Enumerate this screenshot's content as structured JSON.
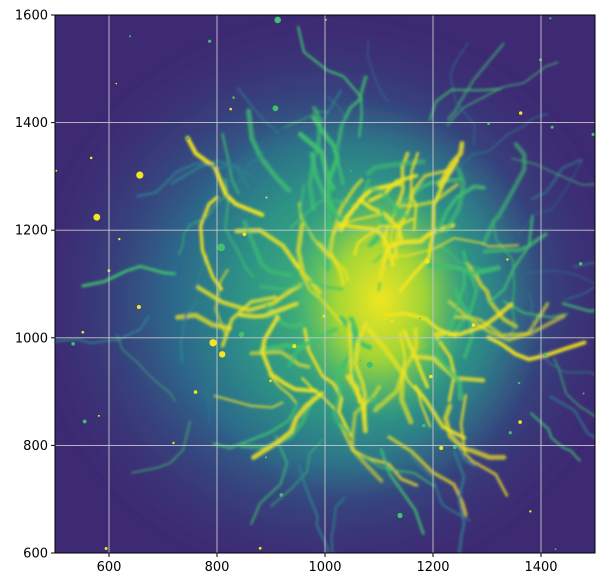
{
  "image": {
    "subject": "nebula",
    "colormap": "viridis",
    "grid": true,
    "colors": {
      "background": "#3d2a73",
      "mid": "#2f7f8e",
      "bright": "#3fc16d",
      "peak": "#f5e61f",
      "grid": "#c8c8c8"
    }
  },
  "axes": {
    "x": {
      "range": [
        500,
        1500
      ],
      "ticks": [
        {
          "value": 600,
          "label": "600"
        },
        {
          "value": 800,
          "label": "800"
        },
        {
          "value": 1000,
          "label": "1000"
        },
        {
          "value": 1200,
          "label": "1200"
        },
        {
          "value": 1400,
          "label": "1400"
        }
      ]
    },
    "y": {
      "range": [
        600,
        1600
      ],
      "ticks": [
        {
          "value": 600,
          "label": "600"
        },
        {
          "value": 800,
          "label": "800"
        },
        {
          "value": 1000,
          "label": "1000"
        },
        {
          "value": 1200,
          "label": "1200"
        },
        {
          "value": 1400,
          "label": "1400"
        },
        {
          "value": 1600,
          "label": "1600"
        }
      ]
    }
  }
}
